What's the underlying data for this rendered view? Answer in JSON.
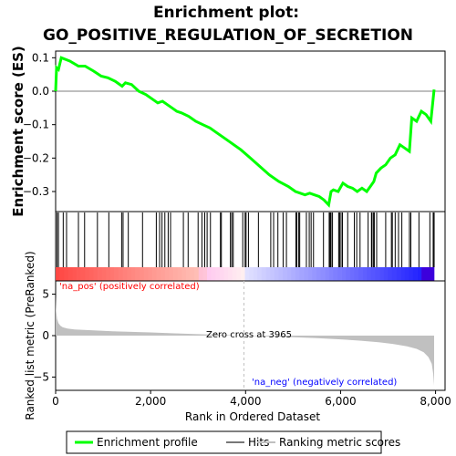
{
  "title_line1": "Enrichment plot:",
  "title_line2": "GO_POSITIVE_REGULATION_OF_SECRETION",
  "colors": {
    "enrichment_line": "#00ff00",
    "hits": "#000000",
    "metric_fill": "#c0c0c0",
    "pos_label": "#ff0000",
    "neg_label": "#0000ff",
    "zero_line": "#c0c0c0"
  },
  "chart_data": [
    {
      "type": "line",
      "name": "enrichment",
      "ylabel": "Enrichment score (ES)",
      "xlim": [
        0,
        8200
      ],
      "ylim": [
        -0.36,
        0.12
      ],
      "yticks": [
        0.1,
        0.0,
        -0.1,
        -0.2,
        -0.3
      ],
      "ytick_labels": [
        "0.1",
        "0.0",
        "−0.1",
        "−0.2",
        "−0.3"
      ],
      "series": [
        {
          "x": [
            0,
            20,
            60,
            120,
            300,
            480,
            620,
            800,
            960,
            1100,
            1250,
            1400,
            1470,
            1600,
            1750,
            1900,
            2050,
            2150,
            2250,
            2350,
            2450,
            2550,
            2650,
            2800,
            2950,
            3100,
            3250,
            3400,
            3550,
            3700,
            3900,
            4100,
            4300,
            4500,
            4700,
            4900,
            5050,
            5150,
            5250,
            5350,
            5450,
            5550,
            5650,
            5750,
            5800,
            5850,
            5950,
            6050,
            6150,
            6250,
            6350,
            6450,
            6550,
            6650,
            6700,
            6750,
            6850,
            6950,
            7050,
            7150,
            7250,
            7350,
            7450,
            7500,
            7600,
            7700,
            7800,
            7900,
            7970
          ],
          "y": [
            0.0,
            0.07,
            0.065,
            0.1,
            0.09,
            0.075,
            0.075,
            0.06,
            0.045,
            0.04,
            0.03,
            0.015,
            0.025,
            0.02,
            0.0,
            -0.01,
            -0.025,
            -0.035,
            -0.03,
            -0.04,
            -0.05,
            -0.06,
            -0.065,
            -0.075,
            -0.09,
            -0.1,
            -0.11,
            -0.125,
            -0.14,
            -0.155,
            -0.175,
            -0.2,
            -0.225,
            -0.25,
            -0.27,
            -0.285,
            -0.3,
            -0.305,
            -0.31,
            -0.305,
            -0.31,
            -0.315,
            -0.325,
            -0.34,
            -0.3,
            -0.295,
            -0.3,
            -0.275,
            -0.285,
            -0.29,
            -0.3,
            -0.29,
            -0.3,
            -0.28,
            -0.27,
            -0.245,
            -0.23,
            -0.22,
            -0.2,
            -0.19,
            -0.16,
            -0.17,
            -0.18,
            -0.08,
            -0.09,
            -0.06,
            -0.07,
            -0.09,
            0.005
          ]
        }
      ]
    },
    {
      "type": "hits",
      "name": "hits",
      "xlim": [
        0,
        8200
      ],
      "x": [
        30,
        60,
        160,
        230,
        480,
        610,
        880,
        1120,
        1390,
        1420,
        1530,
        1830,
        2120,
        2190,
        2240,
        2300,
        2370,
        2420,
        2690,
        2790,
        3000,
        3080,
        3140,
        3190,
        3260,
        3470,
        3490,
        3680,
        3710,
        3740,
        3940,
        3990,
        4010,
        4060,
        4270,
        4530,
        4590,
        4680,
        4790,
        4860,
        5060,
        5080,
        5120,
        5140,
        5280,
        5340,
        5380,
        5430,
        5640,
        5760,
        5780,
        5800,
        5830,
        5960,
        5980,
        6010,
        6040,
        6150,
        6290,
        6340,
        6410,
        6580,
        6650,
        6660,
        6690,
        6710,
        6760,
        6950,
        7070,
        7090,
        7150,
        7220,
        7290,
        7450,
        7480,
        7650,
        7880,
        7950,
        7970
      ]
    },
    {
      "type": "area",
      "name": "ranked_list_metric",
      "xlabel": "Rank in Ordered Dataset",
      "ylabel": "Ranked list metric (PreRanked)",
      "xlim": [
        0,
        8200
      ],
      "ylim": [
        -6.6,
        6.6
      ],
      "xticks": [
        0,
        2000,
        4000,
        6000,
        8000
      ],
      "xtick_labels": [
        "0",
        "2,000",
        "4,000",
        "6,000",
        "8,000"
      ],
      "yticks": [
        5,
        0,
        -5
      ],
      "ytick_labels": [
        "5",
        "0",
        "−5"
      ],
      "x": [
        0,
        10,
        30,
        60,
        100,
        150,
        250,
        400,
        600,
        900,
        1200,
        1600,
        2000,
        2500,
        3000,
        3500,
        3965,
        4500,
        5000,
        5500,
        6000,
        6400,
        6800,
        7100,
        7400,
        7600,
        7750,
        7850,
        7920,
        7950,
        7970
      ],
      "y": [
        4.8,
        3.0,
        2.0,
        1.5,
        1.2,
        1.0,
        0.85,
        0.75,
        0.68,
        0.6,
        0.52,
        0.45,
        0.38,
        0.28,
        0.18,
        0.08,
        0.0,
        -0.1,
        -0.2,
        -0.3,
        -0.45,
        -0.6,
        -0.8,
        -1.0,
        -1.3,
        -1.6,
        -2.0,
        -2.6,
        -3.4,
        -4.6,
        -6.0
      ]
    }
  ],
  "annotations": {
    "pos": "'na_pos' (positively correlated)",
    "neg": "'na_neg' (negatively correlated)",
    "zero_cross": "Zero cross at 3965"
  },
  "legend": {
    "placement": "bottom",
    "items": [
      {
        "label": "Enrichment profile",
        "color": "#00ff00",
        "kind": "line"
      },
      {
        "label": "Hits",
        "color": "#777777",
        "kind": "line"
      },
      {
        "label": "Ranking metric scores",
        "color": "#c0c0c0",
        "kind": "line"
      }
    ]
  }
}
